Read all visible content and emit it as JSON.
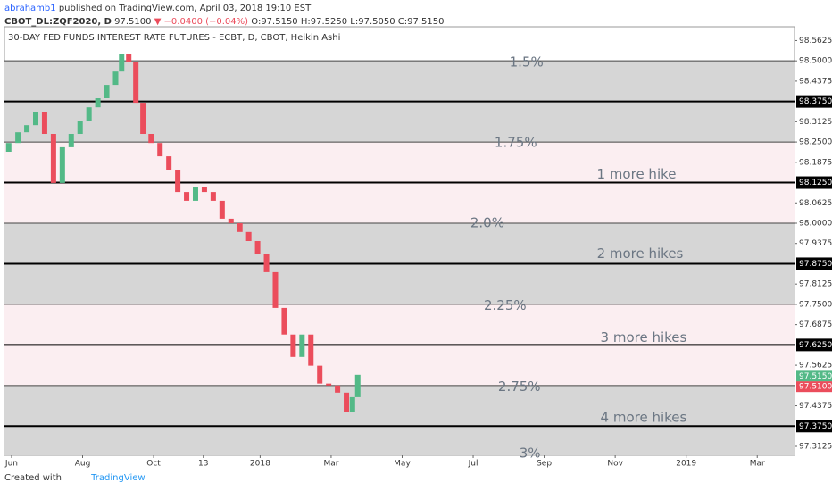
{
  "header": {
    "author": "abrahamb1",
    "published": " published on TradingView.com, April 03, 2018 19:10 EST",
    "symbol": "CBOT_DL:ZQF2020, D",
    "last": "97.5100",
    "change": "▼ −0.0400 (−0.04%)",
    "open": "O:97.5150",
    "high": "H:97.5250",
    "low": "L:97.5050",
    "close": "C:97.5150"
  },
  "footer": {
    "created": "Created with",
    "brand": "TradingView"
  },
  "chart_data": {
    "type": "candlestick",
    "title": "30-DAY FED FUNDS INTEREST RATE FUTURES - ECBT, D, CBOT, Heikin Ashi",
    "x": [
      -0.08,
      0.18,
      0.43,
      0.68,
      0.93,
      1.18,
      1.43,
      1.68,
      1.93,
      2.18,
      2.43,
      2.68,
      2.93,
      3.1,
      3.3,
      3.5,
      3.7,
      3.93,
      4.18,
      4.43,
      4.68,
      4.93,
      5.18,
      5.43,
      5.68,
      5.93,
      6.18,
      6.43,
      6.68,
      6.93,
      7.18,
      7.43,
      7.68,
      7.93,
      8.18,
      8.43,
      8.68,
      8.93,
      9.18,
      9.43,
      9.6,
      9.75
    ],
    "open": [
      98.22,
      98.247,
      98.28,
      98.302,
      98.343,
      98.275,
      98.124,
      98.234,
      98.275,
      98.316,
      98.357,
      98.385,
      98.426,
      98.467,
      98.522,
      98.495,
      98.371,
      98.275,
      98.247,
      98.206,
      98.165,
      98.096,
      98.069,
      98.11,
      98.096,
      98.069,
      98.014,
      98.0,
      97.973,
      97.945,
      97.904,
      97.849,
      97.739,
      97.657,
      97.588,
      97.657,
      97.561,
      97.506,
      97.5,
      97.478,
      97.418,
      97.464
    ],
    "close": [
      98.247,
      98.28,
      98.302,
      98.343,
      98.275,
      98.124,
      98.234,
      98.275,
      98.316,
      98.357,
      98.385,
      98.426,
      98.467,
      98.522,
      98.495,
      98.371,
      98.275,
      98.247,
      98.206,
      98.165,
      98.096,
      98.069,
      98.11,
      98.096,
      98.069,
      98.014,
      98.0,
      97.973,
      97.945,
      97.904,
      97.849,
      97.739,
      97.657,
      97.588,
      97.657,
      97.561,
      97.506,
      97.5,
      97.478,
      97.418,
      97.464,
      97.533
    ],
    "up_color": "#53b987",
    "down_color": "#eb4d5c",
    "xlim": [
      -0.2,
      22.05
    ],
    "ylim": [
      97.285,
      98.605
    ],
    "xticks": [
      {
        "value": 0,
        "label": "Jun"
      },
      {
        "value": 2,
        "label": "Aug"
      },
      {
        "value": 4,
        "label": "Oct"
      },
      {
        "value": 5.4,
        "label": "13"
      },
      {
        "value": 7,
        "label": "2018"
      },
      {
        "value": 9,
        "label": "Mar"
      },
      {
        "value": 11,
        "label": "May"
      },
      {
        "value": 13,
        "label": "Jul"
      },
      {
        "value": 15,
        "label": "Sep"
      },
      {
        "value": 17,
        "label": "Nov"
      },
      {
        "value": 19,
        "label": "2019"
      },
      {
        "value": 21,
        "label": "Mar"
      }
    ],
    "yticks": [
      {
        "value": 98.5625,
        "label": "98.5625"
      },
      {
        "value": 98.5,
        "label": "98.5000"
      },
      {
        "value": 98.4375,
        "label": "98.4375"
      },
      {
        "value": 98.3125,
        "label": "98.3125"
      },
      {
        "value": 98.25,
        "label": "98.2500"
      },
      {
        "value": 98.1875,
        "label": "98.1875"
      },
      {
        "value": 98.0625,
        "label": "98.0625"
      },
      {
        "value": 98.0,
        "label": "98.0000"
      },
      {
        "value": 97.9375,
        "label": "97.9375"
      },
      {
        "value": 97.8125,
        "label": "97.8125"
      },
      {
        "value": 97.75,
        "label": "97.7500"
      },
      {
        "value": 97.6875,
        "label": "97.6875"
      },
      {
        "value": 97.5625,
        "label": "97.5625"
      },
      {
        "value": 97.4375,
        "label": "97.4375"
      },
      {
        "value": 97.3125,
        "label": "97.3125"
      }
    ],
    "bands": [
      {
        "from": 98.5,
        "color": "#d6d6d6"
      },
      {
        "from": 98.25,
        "color": "#fbeef1"
      },
      {
        "from": 98.0,
        "color": "#d6d6d6"
      },
      {
        "from": 97.75,
        "color": "#fbeef1"
      },
      {
        "from": 97.5,
        "color": "#d6d6d6"
      }
    ],
    "thin_levels": [
      98.5,
      98.25,
      98.0,
      97.75,
      97.5
    ],
    "key_levels": [
      {
        "value": 98.375,
        "label": "98.3750"
      },
      {
        "value": 98.125,
        "label": "98.1250"
      },
      {
        "value": 97.875,
        "label": "97.8750"
      },
      {
        "value": 97.625,
        "label": "97.6250"
      },
      {
        "value": 97.375,
        "label": "97.3750"
      }
    ],
    "price_labels": [
      {
        "value": 97.515,
        "label": "97.5150",
        "color": "#53b987"
      },
      {
        "value": 97.51,
        "label": "97.5100",
        "color": "#eb4d5c"
      }
    ],
    "annotations": [
      {
        "text": "1.5%",
        "x": 14.5,
        "y": 98.495
      },
      {
        "text": "1.75%",
        "x": 14.2,
        "y": 98.248
      },
      {
        "text": "1 more hike",
        "x": 17.6,
        "y": 98.15
      },
      {
        "text": "2.0%",
        "x": 13.4,
        "y": 98.0
      },
      {
        "text": "2 more hikes",
        "x": 17.7,
        "y": 97.905
      },
      {
        "text": "2.25%",
        "x": 13.9,
        "y": 97.745
      },
      {
        "text": "3 more hikes",
        "x": 17.8,
        "y": 97.647
      },
      {
        "text": "2.75%",
        "x": 14.3,
        "y": 97.495
      },
      {
        "text": "4 more hikes",
        "x": 17.8,
        "y": 97.4
      },
      {
        "text": "3%",
        "x": 14.6,
        "y": 97.29
      }
    ]
  }
}
